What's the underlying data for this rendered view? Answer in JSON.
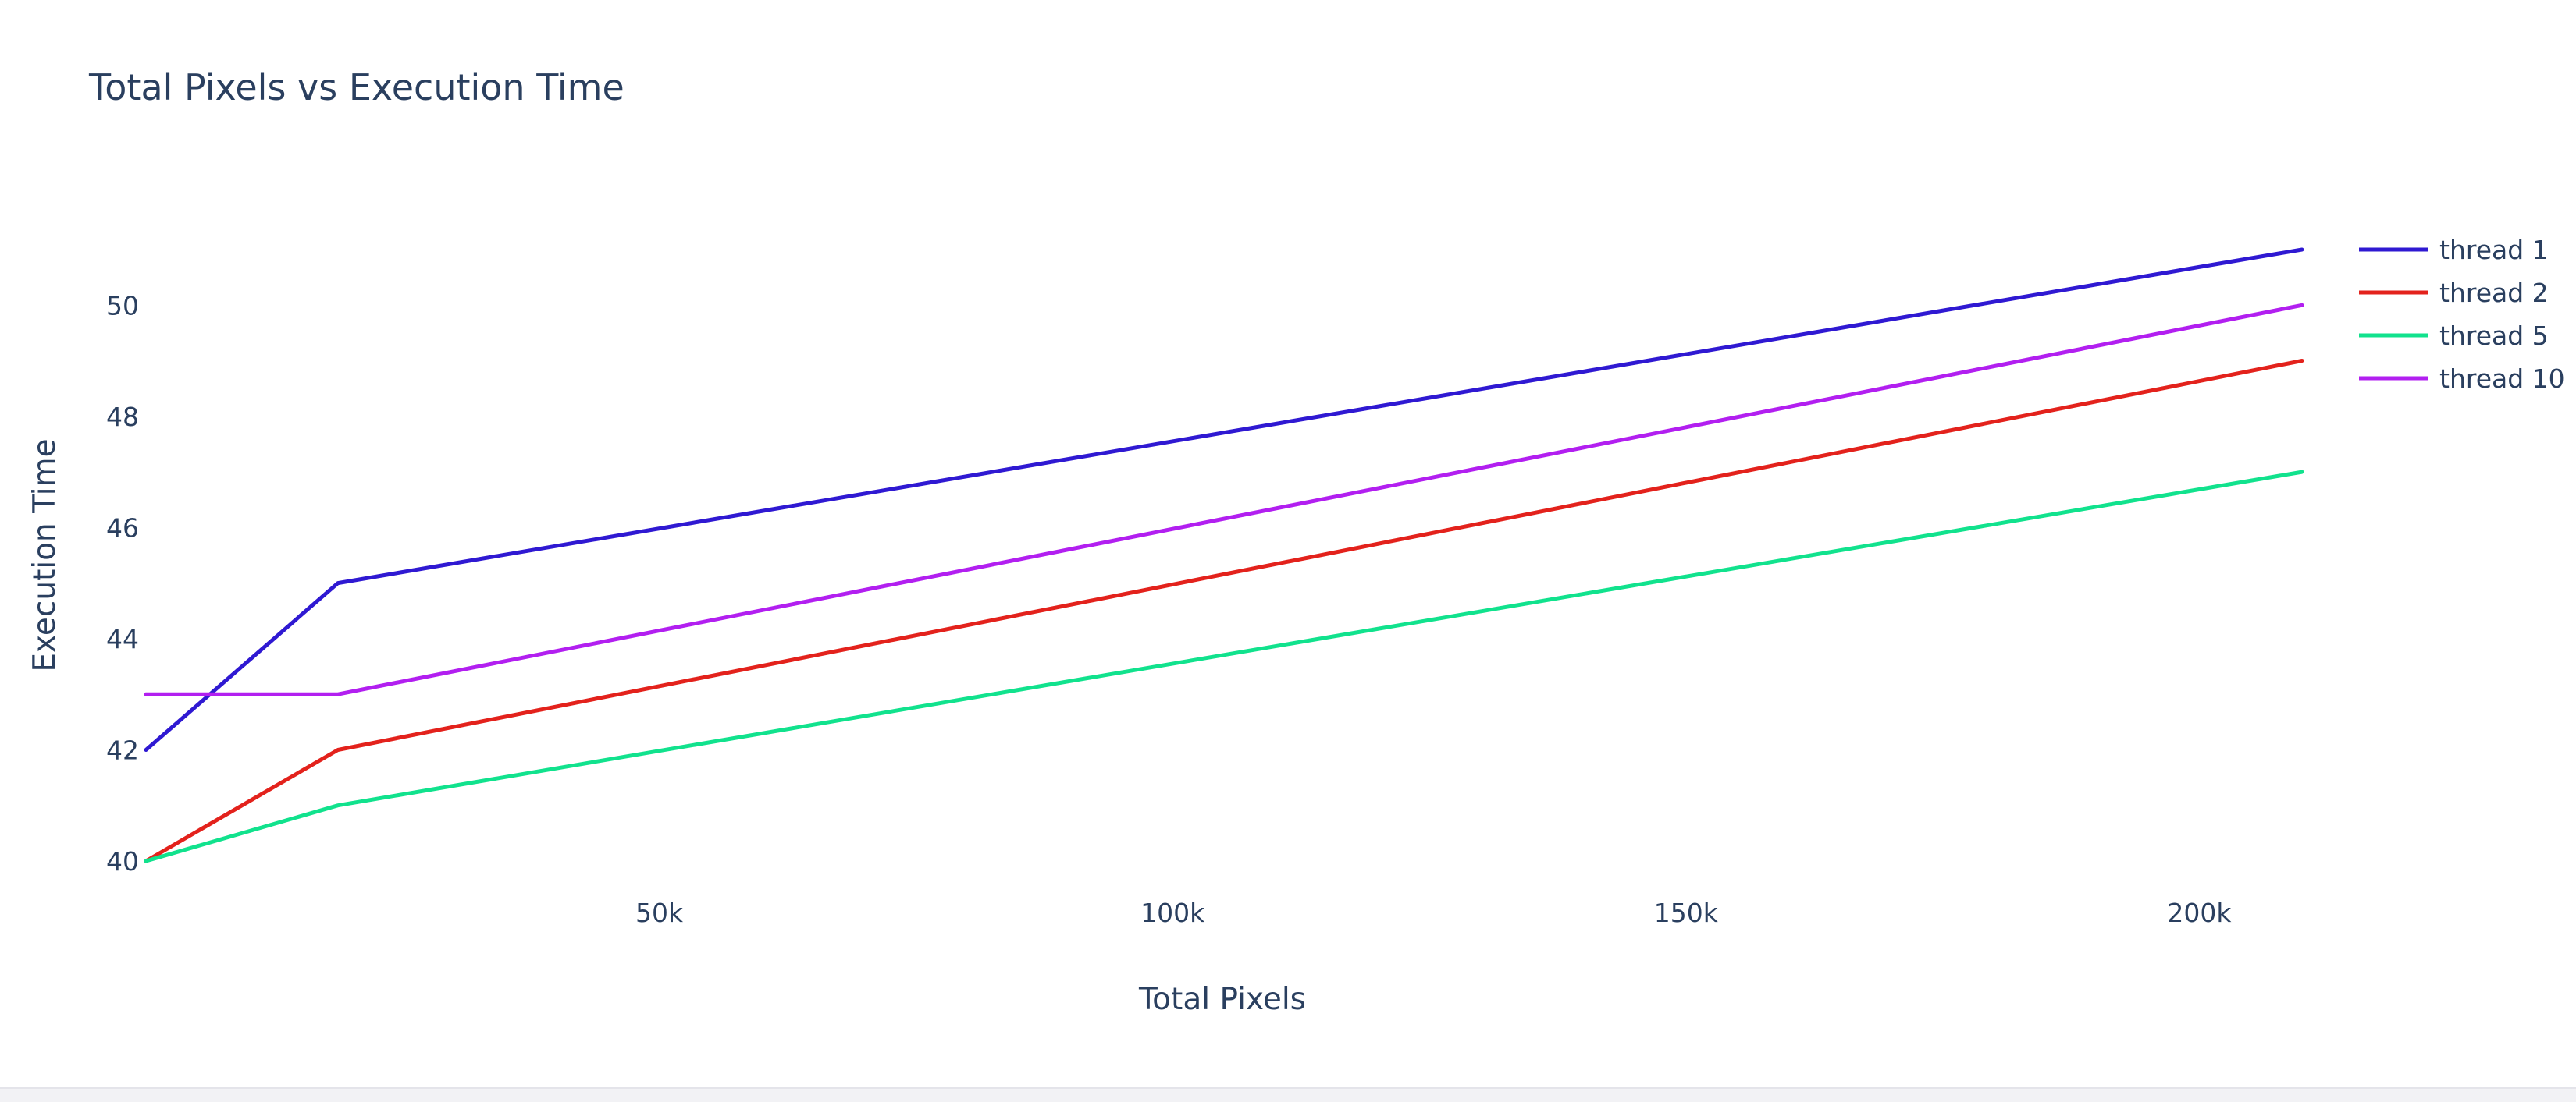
{
  "chart_data": {
    "type": "line",
    "title": "Total Pixels vs Execution Time",
    "xlabel": "Total Pixels",
    "ylabel": "Execution Time",
    "x": [
      1,
      18700,
      210000
    ],
    "xlim": [
      1,
      210000
    ],
    "ylim": [
      40,
      51
    ],
    "xticks": [
      50000,
      100000,
      150000,
      200000
    ],
    "xtick_labels": [
      "50k",
      "100k",
      "150k",
      "200k"
    ],
    "yticks": [
      40,
      42,
      44,
      46,
      48,
      50
    ],
    "ytick_labels": [
      "40",
      "42",
      "44",
      "46",
      "48",
      "50"
    ],
    "grid": false,
    "legend_position": "top-right",
    "series": [
      {
        "name": "thread 1",
        "color": "#2f19d2",
        "values": [
          42,
          45,
          51
        ]
      },
      {
        "name": "thread 2",
        "color": "#e3221c",
        "values": [
          40,
          42,
          49
        ]
      },
      {
        "name": "thread 5",
        "color": "#11e28d",
        "values": [
          40,
          41,
          47
        ]
      },
      {
        "name": "thread 10",
        "color": "#b21ff0",
        "values": [
          43,
          43,
          50
        ]
      }
    ]
  }
}
